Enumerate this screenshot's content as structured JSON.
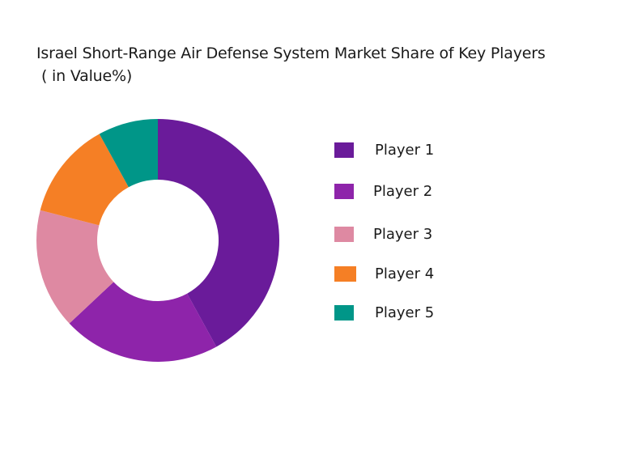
{
  "title_line1": "Israel Short-Range Air Defense System Market Share of Key Players",
  "title_line2": "( in Value%)",
  "chart_data": {
    "type": "pie",
    "subtype": "donut",
    "title": "Israel Short-Range Air Defense System Market Share of Key Players ( in Value%)",
    "categories": [
      "Player 1",
      "Player 2",
      "Player 3",
      "Player 4",
      "Player 5"
    ],
    "values": [
      42,
      21,
      16,
      13,
      8
    ],
    "colors": [
      "#6a1b9a",
      "#8e24aa",
      "#de89a2",
      "#f57f25",
      "#009688"
    ],
    "start_angle": "12 o'clock, clockwise",
    "legend_position": "right",
    "data_labels": false
  },
  "legend": [
    {
      "label": "Player 1",
      "color": "#6a1b9a"
    },
    {
      "label": "Player 2",
      "color": "#8e24aa"
    },
    {
      "label": "Player 3",
      "color": "#de89a2"
    },
    {
      "label": "Player 4",
      "color": "#f57f25"
    },
    {
      "label": "Player 5",
      "color": "#009688"
    }
  ]
}
